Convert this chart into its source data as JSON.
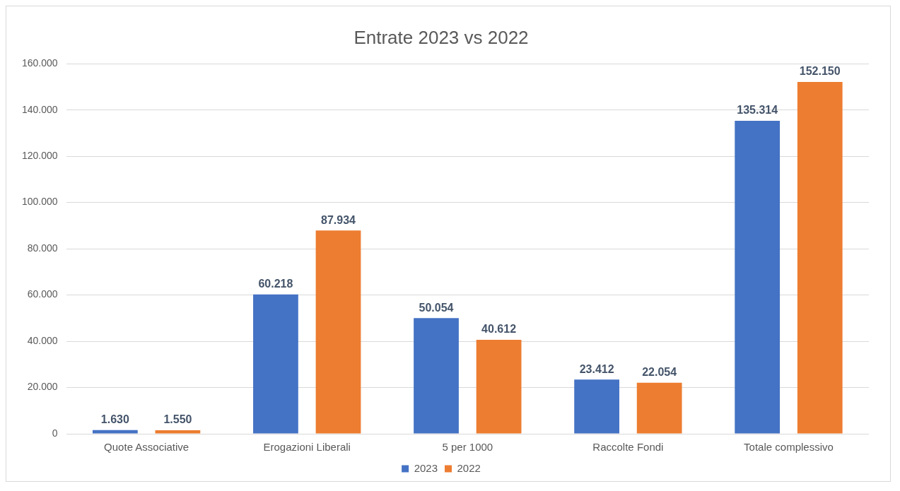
{
  "chart_data": {
    "type": "bar",
    "title": "Entrate 2023 vs 2022",
    "categories": [
      "Quote Associative",
      "Erogazioni Liberali",
      "5 per 1000",
      "Raccolte Fondi",
      "Totale complessivo"
    ],
    "series": [
      {
        "name": "2023",
        "color": "#4472c4",
        "values": [
          1630,
          60218,
          50054,
          23412,
          135314
        ],
        "value_labels": [
          "1.630",
          "60.218",
          "50.054",
          "23.412",
          "135.314"
        ]
      },
      {
        "name": "2022",
        "color": "#ed7d31",
        "values": [
          1550,
          87934,
          40612,
          22054,
          152150
        ],
        "value_labels": [
          "1.550",
          "87.934",
          "40.612",
          "22.054",
          "152.150"
        ]
      }
    ],
    "ylim": [
      0,
      160000
    ],
    "yticks": [
      {
        "value": 0,
        "label": "0"
      },
      {
        "value": 20000,
        "label": "20.000"
      },
      {
        "value": 40000,
        "label": "40.000"
      },
      {
        "value": 60000,
        "label": "60.000"
      },
      {
        "value": 80000,
        "label": "80.000"
      },
      {
        "value": 100000,
        "label": "100.000"
      },
      {
        "value": 120000,
        "label": "120.000"
      },
      {
        "value": 140000,
        "label": "140.000"
      },
      {
        "value": 160000,
        "label": "160.000"
      }
    ],
    "grid": "y",
    "legend": "bottom"
  }
}
